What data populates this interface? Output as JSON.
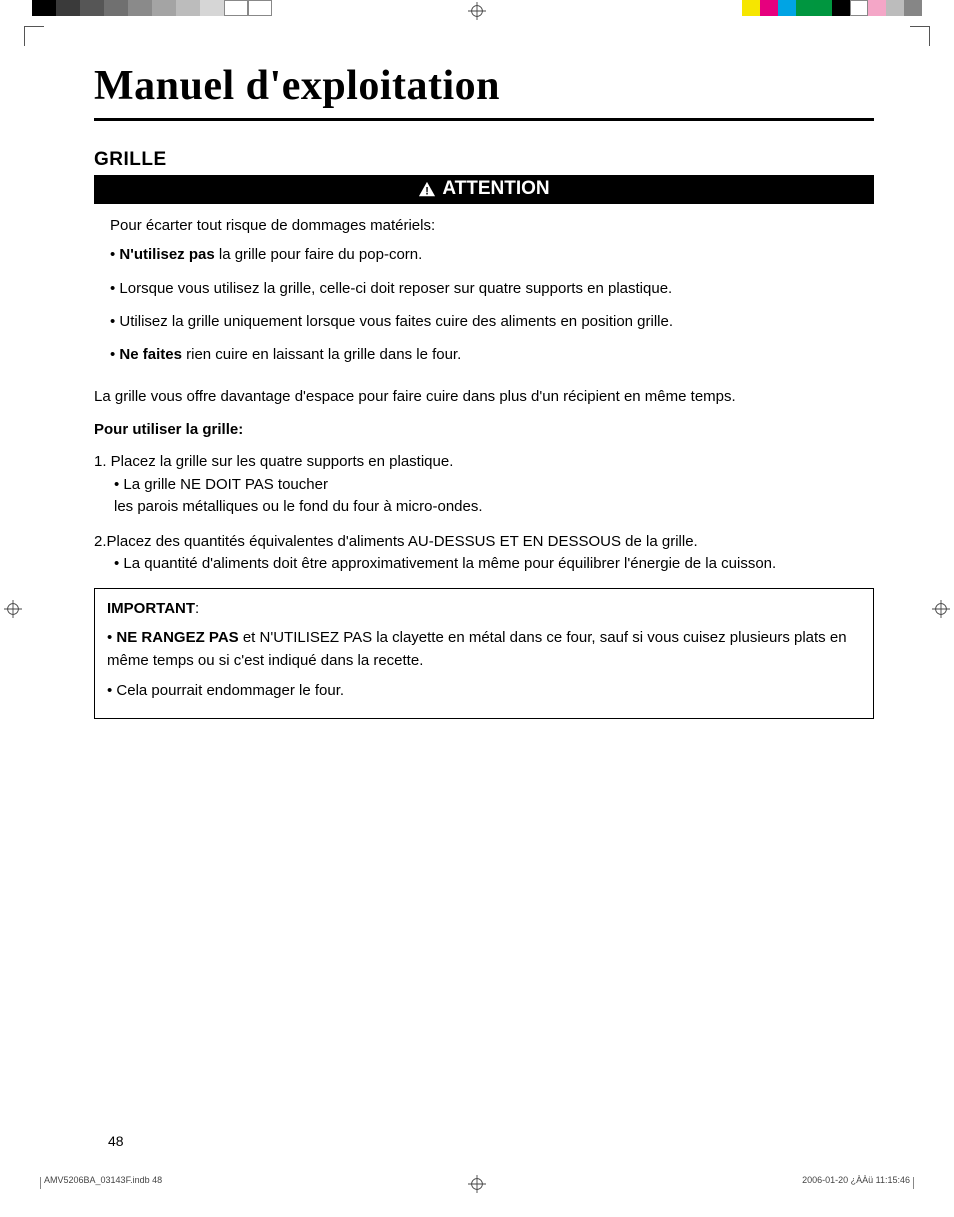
{
  "print": {
    "left_swatches": [
      "#000000",
      "#3a3a3a",
      "#565656",
      "#707070",
      "#8a8a8a",
      "#a4a4a4",
      "#bcbcbc",
      "#d6d6d6",
      "#ffffff",
      "#ffffff"
    ],
    "right_swatches": [
      "#f6e600",
      "#e6007e",
      "#00a4e4",
      "#009640",
      "#00963f",
      "#000000",
      "#ffffff",
      "#f4a6c7",
      "#bcbcbc",
      "#868686"
    ]
  },
  "title": "Manuel d'exploitation",
  "section": "GRILLE",
  "attention": {
    "label": "ATTENTION",
    "intro": "Pour écarter tout risque de dommages matériels:",
    "items": [
      {
        "bold": "N'utilisez pas",
        "rest": " la grille pour faire du pop-corn."
      },
      {
        "bold": "",
        "rest": "Lorsque vous utilisez la grille, celle-ci doit reposer sur quatre supports en plastique."
      },
      {
        "bold": "",
        "rest": "Utilisez la grille uniquement lorsque vous faites cuire des aliments en position grille."
      },
      {
        "bold": "Ne faites",
        "rest": " rien cuire en laissant la grille dans le four."
      }
    ]
  },
  "body": {
    "lead": "La grille vous offre davantage d'espace pour faire cuire dans plus d'un récipient en même temps.",
    "usage_title": "Pour utiliser la grille:",
    "steps": [
      {
        "num": "1.",
        "text": " Placez la grille sur les quatre supports en plastique.",
        "sub": [
          "La grille NE DOIT PAS toucher",
          "les parois métalliques ou le fond du four à micro-ondes."
        ]
      },
      {
        "num": "2.",
        "text": "Placez des quantités équivalentes d'aliments AU-DESSUS ET EN DESSOUS de la grille.",
        "sub": [
          "La quantité d'aliments doit être approximativement la même pour équilibrer l'énergie de la cuisson."
        ]
      }
    ]
  },
  "important": {
    "title": "IMPORTANT",
    "items": [
      {
        "bold": "NE RANGEZ PAS",
        "rest": " et N'UTILISEZ PAS la clayette en métal dans ce four, sauf si vous cuisez plusieurs plats en même temps ou si c'est indiqué dans la recette."
      },
      {
        "bold": "",
        "rest": "Cela pourrait endommager le four."
      }
    ]
  },
  "page_number": "48",
  "footer": {
    "left": "AMV5206BA_03143F.indb   48",
    "right": "2006-01-20   ¿ÀÀü 11:15:46"
  }
}
